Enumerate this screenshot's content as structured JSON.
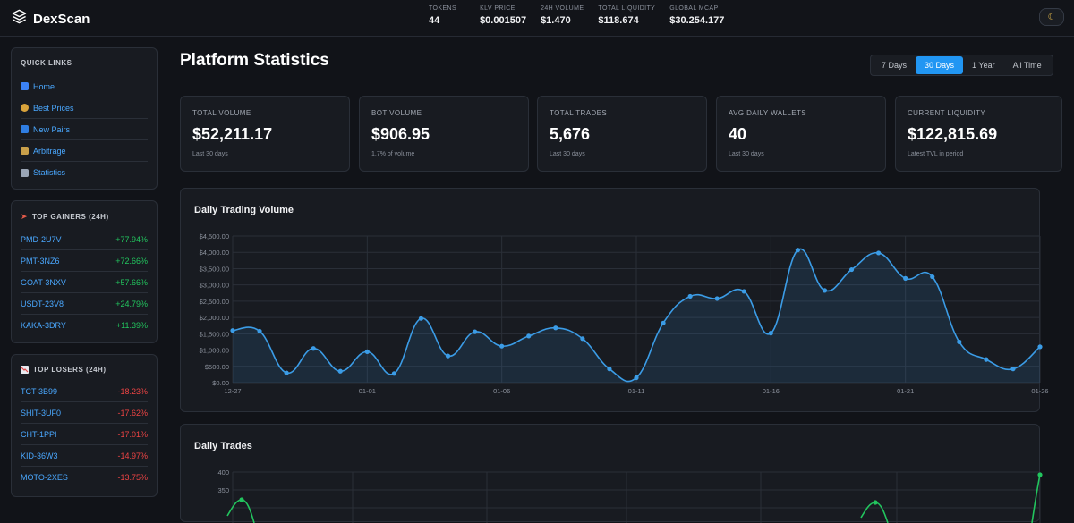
{
  "brand": {
    "name": "DexScan"
  },
  "header_stats": [
    {
      "label": "TOKENS",
      "value": "44"
    },
    {
      "label": "KLV PRICE",
      "value": "$0.001507"
    },
    {
      "label": "24H VOLUME",
      "value": "$1.470"
    },
    {
      "label": "TOTAL LIQUIDITY",
      "value": "$118.674"
    },
    {
      "label": "GLOBAL MCAP",
      "value": "$30.254.177"
    }
  ],
  "theme_toggle_icon": "moon-icon",
  "quick_links": {
    "title": "QUICK LINKS",
    "items": [
      {
        "label": "Home",
        "icon": "chart-icon"
      },
      {
        "label": "Best Prices",
        "icon": "money-bag-icon"
      },
      {
        "label": "New Pairs",
        "icon": "new-icon"
      },
      {
        "label": "Arbitrage",
        "icon": "scale-icon"
      },
      {
        "label": "Statistics",
        "icon": "trend-icon"
      }
    ]
  },
  "top_gainers": {
    "title": "TOP GAINERS (24H)",
    "items": [
      {
        "symbol": "PMD-2U7V",
        "change": "+77.94%"
      },
      {
        "symbol": "PMT-3NZ6",
        "change": "+72.66%"
      },
      {
        "symbol": "GOAT-3NXV",
        "change": "+57.66%"
      },
      {
        "symbol": "USDT-23V8",
        "change": "+24.79%"
      },
      {
        "symbol": "KAKA-3DRY",
        "change": "+11.39%"
      }
    ]
  },
  "top_losers": {
    "title": "TOP LOSERS (24H)",
    "items": [
      {
        "symbol": "TCT-3B99",
        "change": "-18.23%"
      },
      {
        "symbol": "SHIT-3UF0",
        "change": "-17.62%"
      },
      {
        "symbol": "CHT-1PPI",
        "change": "-17.01%"
      },
      {
        "symbol": "KID-36W3",
        "change": "-14.97%"
      },
      {
        "symbol": "MOTO-2XES",
        "change": "-13.75%"
      }
    ]
  },
  "page": {
    "title": "Platform Statistics"
  },
  "ranges": [
    {
      "label": "7 Days",
      "active": false
    },
    {
      "label": "30 Days",
      "active": true
    },
    {
      "label": "1 Year",
      "active": false
    },
    {
      "label": "All Time",
      "active": false
    }
  ],
  "cards": [
    {
      "label": "TOTAL VOLUME",
      "value": "$52,211.17",
      "sub": "Last 30 days"
    },
    {
      "label": "BOT VOLUME",
      "value": "$906.95",
      "sub": "1.7% of volume"
    },
    {
      "label": "TOTAL TRADES",
      "value": "5,676",
      "sub": "Last 30 days"
    },
    {
      "label": "AVG DAILY WALLETS",
      "value": "40",
      "sub": "Last 30 days"
    },
    {
      "label": "CURRENT LIQUIDITY",
      "value": "$122,815.69",
      "sub": "Latest TVL in period"
    }
  ],
  "colors": {
    "volume_line": "#3b9ce6",
    "trades_line": "#22c55e",
    "accent": "#2196f3"
  },
  "chart_data": [
    {
      "type": "area",
      "title": "Daily Trading Volume",
      "x": [
        "12-27",
        "12-28",
        "12-29",
        "12-30",
        "12-31",
        "01-01",
        "01-02",
        "01-03",
        "01-04",
        "01-05",
        "01-06",
        "01-07",
        "01-08",
        "01-09",
        "01-10",
        "01-11",
        "01-12",
        "01-13",
        "01-14",
        "01-15",
        "01-16",
        "01-17",
        "01-18",
        "01-19",
        "01-20",
        "01-21",
        "01-22",
        "01-23",
        "01-24",
        "01-25",
        "01-26"
      ],
      "values": [
        1600,
        1580,
        300,
        1050,
        350,
        950,
        280,
        1970,
        820,
        1560,
        1120,
        1430,
        1680,
        1350,
        420,
        150,
        1830,
        2650,
        2580,
        2800,
        1520,
        4070,
        2830,
        3470,
        3980,
        3200,
        3250,
        1250,
        710,
        420,
        1100
      ],
      "tick_labels": [
        "12-27",
        "01-01",
        "01-06",
        "01-11",
        "01-16",
        "01-21",
        "01-26"
      ],
      "ylim": [
        0,
        4500
      ],
      "yticks": [
        "$0.00",
        "$500.00",
        "$1,000.00",
        "$1,500.00",
        "$2,000.00",
        "$2,500.00",
        "$3,000.00",
        "$3,500.00",
        "$4,000.00",
        "$4,500.00"
      ],
      "grid": true
    },
    {
      "type": "line",
      "title": "Daily Trades",
      "visible_yticks": [
        "400",
        "350"
      ],
      "ylim_top": 400
    }
  ]
}
